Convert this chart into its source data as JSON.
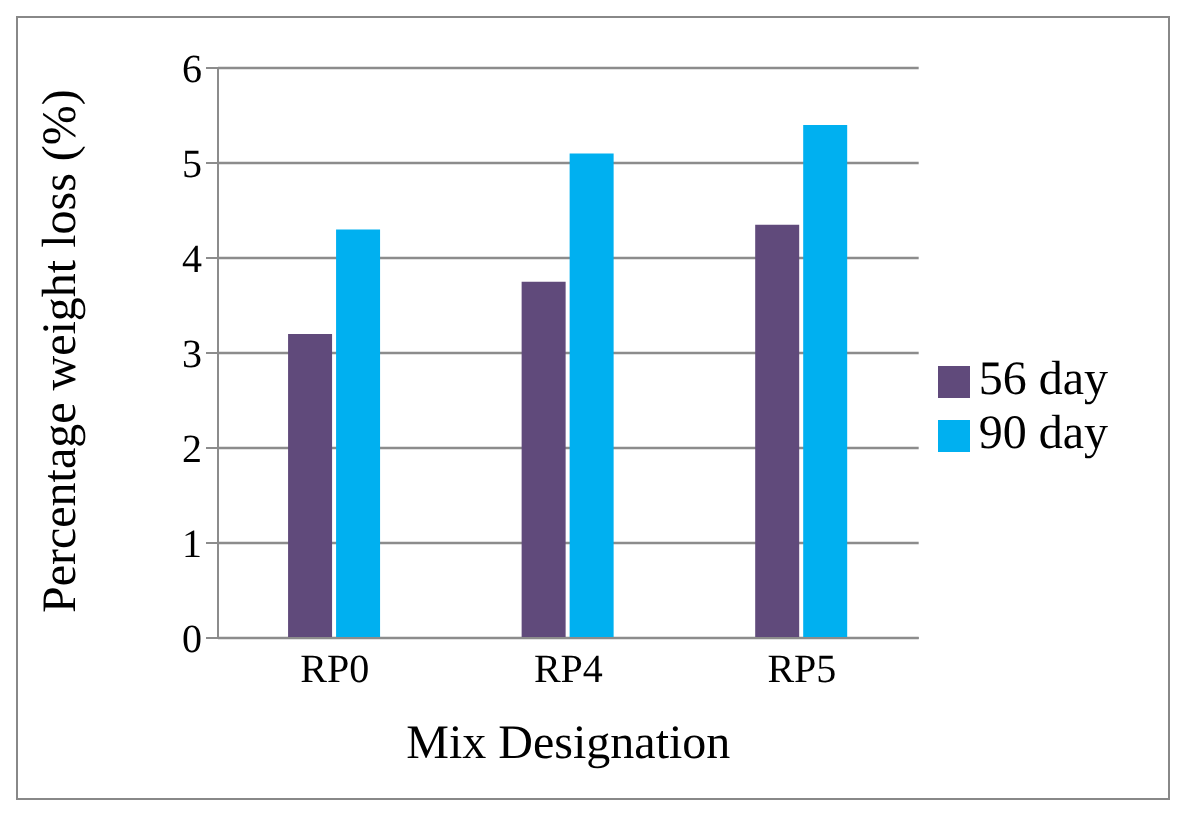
{
  "chart_data": {
    "type": "bar",
    "xlabel": "Mix Designation",
    "ylabel": "Percentage weight loss (%)",
    "categories": [
      "RP0",
      "RP4",
      "RP5"
    ],
    "series": [
      {
        "name": "56  day",
        "color": "#604a7b",
        "values": [
          3.2,
          3.75,
          4.35
        ]
      },
      {
        "name": "90  day",
        "color": "#00b0f0",
        "values": [
          4.3,
          5.1,
          5.4
        ]
      }
    ],
    "ylim": [
      0,
      6
    ],
    "yticks": [
      0,
      1,
      2,
      3,
      4,
      5,
      6
    ],
    "grid": "y",
    "legend": "right"
  }
}
